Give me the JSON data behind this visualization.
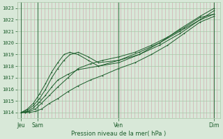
{
  "title": "",
  "xlabel": "Pression niveau de la mer( hPa )",
  "ylabel": "",
  "bg_color": "#d8e8d8",
  "plot_bg_color": "#d8e8d8",
  "line_color": "#1a5c2a",
  "grid_color_v": "#d0a0a8",
  "grid_color_h": "#a8c8a8",
  "ylim": [
    1013.5,
    1023.5
  ],
  "yticks": [
    1014,
    1015,
    1016,
    1017,
    1018,
    1019,
    1020,
    1021,
    1022,
    1023
  ],
  "xtick_labels": [
    "Jeu",
    "Sam",
    "Ven",
    "Dim"
  ],
  "xtick_pos": [
    0.02,
    0.1,
    0.5,
    0.97
  ],
  "xlim": [
    0.0,
    1.0
  ],
  "num_vlines": 60,
  "lines": [
    {
      "x": [
        0.02,
        0.04,
        0.06,
        0.09,
        0.12,
        0.16,
        0.2,
        0.25,
        0.3,
        0.36,
        0.42,
        0.5,
        0.58,
        0.66,
        0.74,
        0.82,
        0.9,
        0.97
      ],
      "y": [
        1014.0,
        1014.0,
        1014.1,
        1014.3,
        1014.8,
        1015.5,
        1016.2,
        1017.0,
        1017.8,
        1018.2,
        1018.5,
        1018.8,
        1019.2,
        1019.8,
        1020.5,
        1021.3,
        1022.2,
        1022.5
      ]
    },
    {
      "x": [
        0.02,
        0.04,
        0.06,
        0.09,
        0.12,
        0.16,
        0.2,
        0.25,
        0.3,
        0.36,
        0.42,
        0.5,
        0.58,
        0.66,
        0.74,
        0.82,
        0.9,
        0.97
      ],
      "y": [
        1014.0,
        1014.0,
        1014.0,
        1014.1,
        1014.3,
        1014.8,
        1015.2,
        1015.8,
        1016.3,
        1016.8,
        1017.2,
        1017.8,
        1018.3,
        1019.0,
        1019.8,
        1020.8,
        1021.8,
        1022.3
      ]
    },
    {
      "x": [
        0.02,
        0.05,
        0.08,
        0.11,
        0.14,
        0.17,
        0.2,
        0.23,
        0.26,
        0.3,
        0.35,
        0.4,
        0.5,
        0.6,
        0.7,
        0.8,
        0.9,
        0.97
      ],
      "y": [
        1014.0,
        1014.2,
        1014.6,
        1015.2,
        1016.0,
        1017.0,
        1017.8,
        1018.5,
        1019.0,
        1019.2,
        1018.8,
        1018.3,
        1018.5,
        1019.0,
        1019.8,
        1020.8,
        1022.0,
        1022.8
      ]
    },
    {
      "x": [
        0.02,
        0.05,
        0.08,
        0.11,
        0.14,
        0.17,
        0.2,
        0.23,
        0.26,
        0.3,
        0.35,
        0.4,
        0.5,
        0.6,
        0.7,
        0.8,
        0.9,
        0.97
      ],
      "y": [
        1014.0,
        1014.3,
        1014.8,
        1015.6,
        1016.5,
        1017.5,
        1018.3,
        1019.0,
        1019.2,
        1019.0,
        1018.5,
        1018.0,
        1018.3,
        1019.0,
        1020.0,
        1021.2,
        1022.3,
        1023.0
      ]
    },
    {
      "x": [
        0.02,
        0.05,
        0.08,
        0.11,
        0.14,
        0.17,
        0.2,
        0.25,
        0.3,
        0.4,
        0.5,
        0.6,
        0.7,
        0.8,
        0.9,
        0.97
      ],
      "y": [
        1014.0,
        1014.1,
        1014.4,
        1014.9,
        1015.5,
        1016.2,
        1016.8,
        1017.3,
        1017.7,
        1018.0,
        1018.5,
        1019.2,
        1020.0,
        1021.0,
        1022.0,
        1022.5
      ]
    }
  ]
}
